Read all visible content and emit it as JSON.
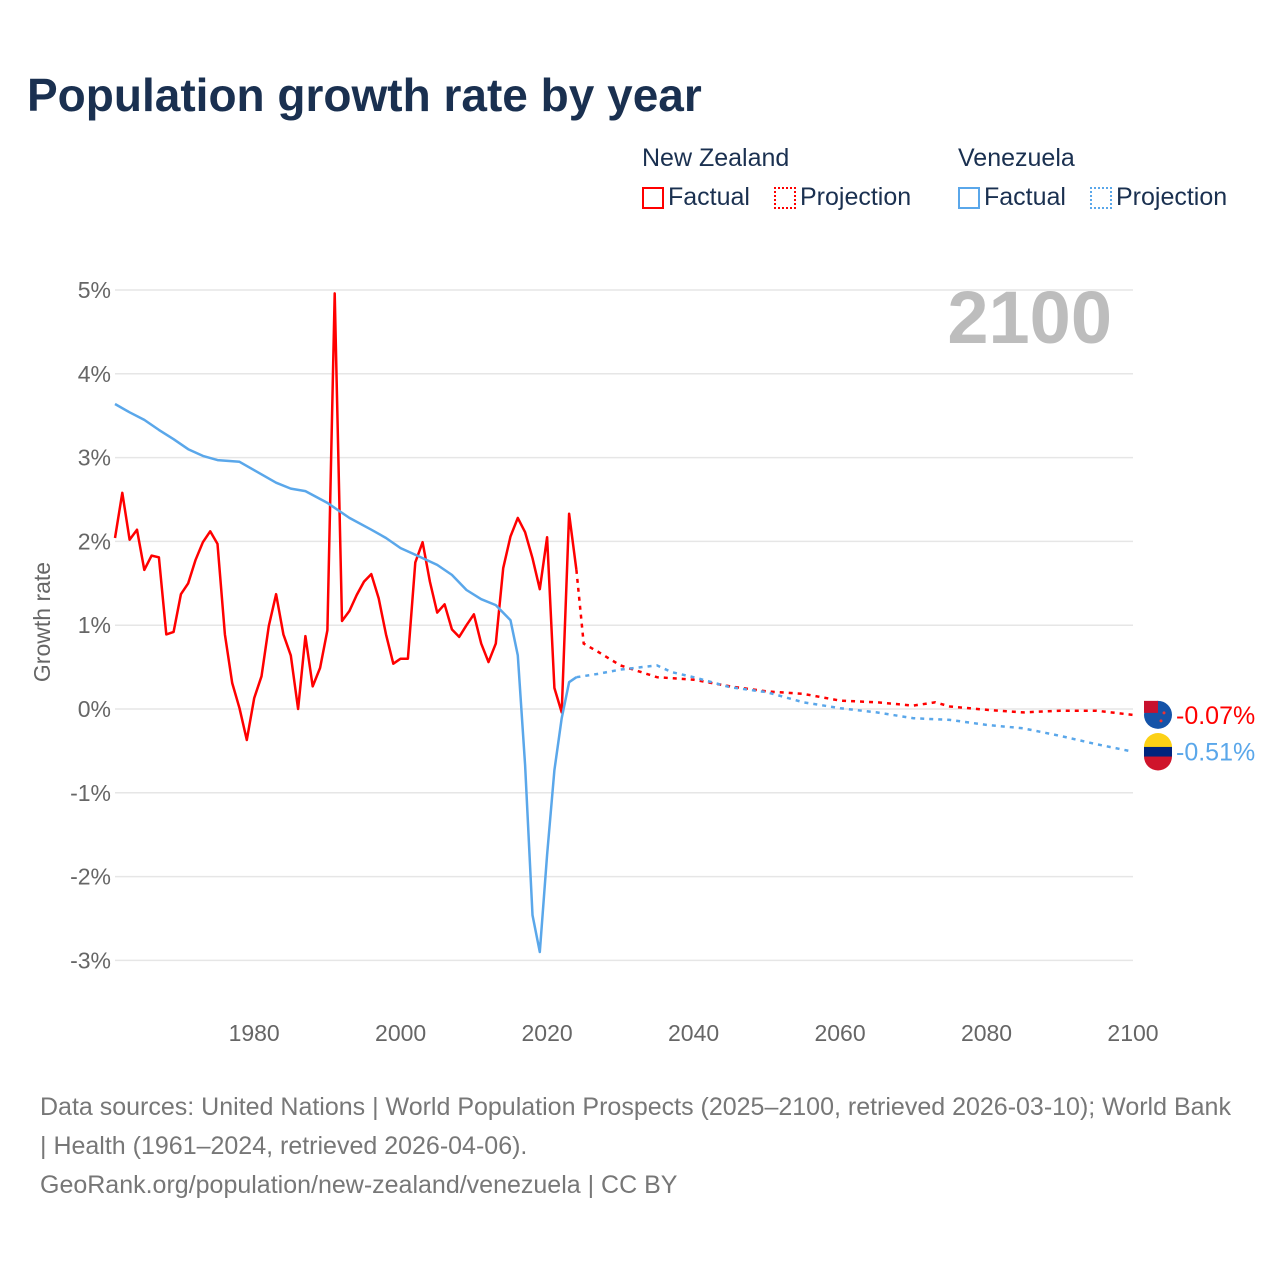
{
  "title": "Population growth rate by year",
  "legend": {
    "groups": [
      {
        "name": "New Zealand",
        "factual": "Factual",
        "projection": "Projection",
        "color": "#ff0000"
      },
      {
        "name": "Venezuela",
        "factual": "Factual",
        "projection": "Projection",
        "color": "#5aa7ea"
      }
    ]
  },
  "year_watermark": "2100",
  "footer": {
    "sources": "Data sources: United Nations | World Population Prospects (2025–2100, retrieved 2026-03-10); World Bank | Health (1961–2024, retrieved 2026-04-06).",
    "credit": "GeoRank.org/population/new-zealand/venezuela | CC BY"
  },
  "chart_data": {
    "type": "line",
    "title": "Population growth rate by year",
    "xlabel": "",
    "ylabel": "Growth rate",
    "xlim": [
      1961,
      2100
    ],
    "ylim": [
      -3,
      5
    ],
    "xticks": [
      1980,
      2000,
      2020,
      2040,
      2060,
      2080,
      2100
    ],
    "xtick_labels": [
      "1980",
      "2000",
      "2020",
      "2040",
      "2060",
      "2080",
      "2100"
    ],
    "yticks": [
      5,
      4,
      3,
      2,
      1,
      0,
      -1,
      -2,
      -3
    ],
    "ytick_labels": [
      "5%",
      "4%",
      "3%",
      "2%",
      "1%",
      "0%",
      "-1%",
      "-2%",
      "-3%"
    ],
    "grid": true,
    "legend_position": "top-right",
    "series": [
      {
        "name": "New Zealand",
        "color": "#ff0000",
        "end_label": "-0.07%",
        "factual": [
          [
            1961,
            2.04
          ],
          [
            1962,
            2.58
          ],
          [
            1963,
            2.02
          ],
          [
            1964,
            2.14
          ],
          [
            1965,
            1.66
          ],
          [
            1966,
            1.83
          ],
          [
            1967,
            1.81
          ],
          [
            1968,
            0.89
          ],
          [
            1969,
            0.92
          ],
          [
            1970,
            1.37
          ],
          [
            1971,
            1.5
          ],
          [
            1972,
            1.78
          ],
          [
            1973,
            1.99
          ],
          [
            1974,
            2.12
          ],
          [
            1975,
            1.97
          ],
          [
            1976,
            0.89
          ],
          [
            1977,
            0.31
          ],
          [
            1978,
            0.01
          ],
          [
            1979,
            -0.37
          ],
          [
            1980,
            0.13
          ],
          [
            1981,
            0.39
          ],
          [
            1982,
            0.99
          ],
          [
            1983,
            1.37
          ],
          [
            1984,
            0.89
          ],
          [
            1985,
            0.64
          ],
          [
            1986,
            0.0
          ],
          [
            1987,
            0.87
          ],
          [
            1988,
            0.27
          ],
          [
            1989,
            0.49
          ],
          [
            1990,
            0.94
          ],
          [
            1991,
            4.96
          ],
          [
            1992,
            1.05
          ],
          [
            1993,
            1.17
          ],
          [
            1994,
            1.36
          ],
          [
            1995,
            1.52
          ],
          [
            1996,
            1.61
          ],
          [
            1997,
            1.32
          ],
          [
            1998,
            0.89
          ],
          [
            1999,
            0.54
          ],
          [
            2000,
            0.6
          ],
          [
            2001,
            0.6
          ],
          [
            2002,
            1.75
          ],
          [
            2003,
            1.99
          ],
          [
            2004,
            1.52
          ],
          [
            2005,
            1.15
          ],
          [
            2006,
            1.25
          ],
          [
            2007,
            0.95
          ],
          [
            2008,
            0.86
          ],
          [
            2009,
            1.0
          ],
          [
            2010,
            1.13
          ],
          [
            2011,
            0.78
          ],
          [
            2012,
            0.56
          ],
          [
            2013,
            0.78
          ],
          [
            2014,
            1.68
          ],
          [
            2015,
            2.06
          ],
          [
            2016,
            2.28
          ],
          [
            2017,
            2.11
          ],
          [
            2018,
            1.8
          ],
          [
            2019,
            1.43
          ],
          [
            2020,
            2.05
          ],
          [
            2021,
            0.25
          ],
          [
            2022,
            -0.04
          ],
          [
            2023,
            2.33
          ],
          [
            2024,
            1.66
          ]
        ],
        "projection": [
          [
            2024,
            1.66
          ],
          [
            2025,
            0.78
          ],
          [
            2027,
            0.68
          ],
          [
            2030,
            0.52
          ],
          [
            2035,
            0.38
          ],
          [
            2040,
            0.35
          ],
          [
            2045,
            0.27
          ],
          [
            2050,
            0.21
          ],
          [
            2055,
            0.18
          ],
          [
            2060,
            0.1
          ],
          [
            2065,
            0.08
          ],
          [
            2070,
            0.04
          ],
          [
            2073,
            0.08
          ],
          [
            2075,
            0.03
          ],
          [
            2080,
            -0.01
          ],
          [
            2085,
            -0.04
          ],
          [
            2090,
            -0.02
          ],
          [
            2095,
            -0.02
          ],
          [
            2100,
            -0.07
          ]
        ]
      },
      {
        "name": "Venezuela",
        "color": "#5aa7ea",
        "end_label": "-0.51%",
        "factual": [
          [
            1961,
            3.64
          ],
          [
            1963,
            3.54
          ],
          [
            1965,
            3.45
          ],
          [
            1967,
            3.33
          ],
          [
            1969,
            3.22
          ],
          [
            1971,
            3.1
          ],
          [
            1973,
            3.02
          ],
          [
            1975,
            2.97
          ],
          [
            1978,
            2.95
          ],
          [
            1980,
            2.85
          ],
          [
            1983,
            2.7
          ],
          [
            1985,
            2.63
          ],
          [
            1987,
            2.6
          ],
          [
            1990,
            2.46
          ],
          [
            1993,
            2.28
          ],
          [
            1996,
            2.14
          ],
          [
            1998,
            2.04
          ],
          [
            2000,
            1.92
          ],
          [
            2002,
            1.84
          ],
          [
            2005,
            1.72
          ],
          [
            2007,
            1.6
          ],
          [
            2009,
            1.42
          ],
          [
            2011,
            1.31
          ],
          [
            2013,
            1.24
          ],
          [
            2015,
            1.06
          ],
          [
            2016,
            0.64
          ],
          [
            2017,
            -0.67
          ],
          [
            2018,
            -2.46
          ],
          [
            2019,
            -2.9
          ],
          [
            2020,
            -1.74
          ],
          [
            2021,
            -0.73
          ],
          [
            2022,
            -0.11
          ],
          [
            2023,
            0.32
          ],
          [
            2024,
            0.38
          ]
        ],
        "projection": [
          [
            2024,
            0.38
          ],
          [
            2027,
            0.42
          ],
          [
            2030,
            0.47
          ],
          [
            2035,
            0.52
          ],
          [
            2037,
            0.44
          ],
          [
            2040,
            0.38
          ],
          [
            2045,
            0.26
          ],
          [
            2050,
            0.2
          ],
          [
            2055,
            0.08
          ],
          [
            2060,
            0.01
          ],
          [
            2065,
            -0.04
          ],
          [
            2070,
            -0.11
          ],
          [
            2075,
            -0.13
          ],
          [
            2080,
            -0.19
          ],
          [
            2085,
            -0.23
          ],
          [
            2090,
            -0.32
          ],
          [
            2095,
            -0.42
          ],
          [
            2100,
            -0.51
          ]
        ]
      }
    ]
  }
}
